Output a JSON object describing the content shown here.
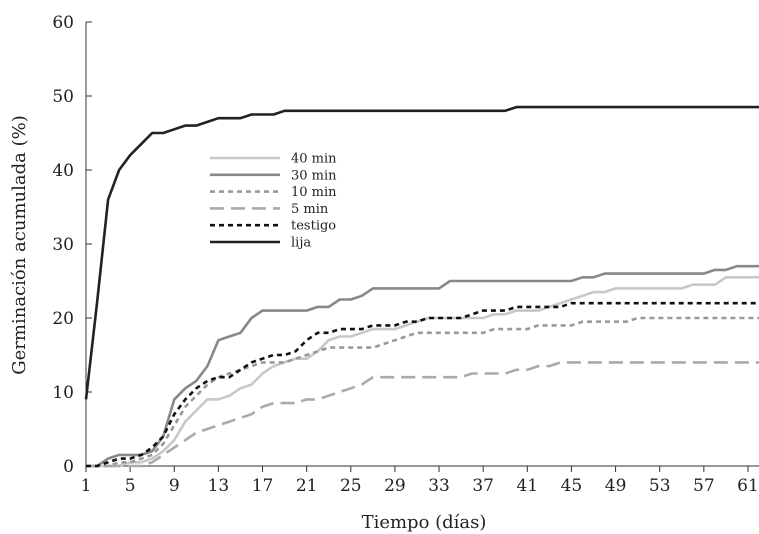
{
  "chart_data": {
    "type": "line",
    "title": "",
    "xlabel": "Tiempo (días)",
    "ylabel": "Germinación acumulada (%)",
    "xlim": [
      1,
      62
    ],
    "ylim": [
      0,
      60
    ],
    "xticks": [
      1,
      5,
      9,
      13,
      17,
      21,
      25,
      29,
      33,
      37,
      41,
      45,
      49,
      53,
      57,
      61
    ],
    "yticks": [
      0,
      10,
      20,
      30,
      40,
      50,
      60
    ],
    "grid": false,
    "legend_position": "left-middle",
    "series": [
      {
        "name": "40 min",
        "color": "#c8c8c8",
        "dash": "solid",
        "x": [
          1,
          2,
          3,
          4,
          5,
          6,
          7,
          8,
          9,
          10,
          11,
          12,
          13,
          14,
          15,
          16,
          17,
          18,
          19,
          20,
          21,
          22,
          23,
          24,
          25,
          26,
          27,
          28,
          29,
          30,
          31,
          32,
          33,
          34,
          35,
          36,
          37,
          38,
          39,
          40,
          41,
          42,
          43,
          44,
          45,
          46,
          47,
          48,
          49,
          50,
          51,
          52,
          53,
          54,
          55,
          56,
          57,
          58,
          59,
          60,
          61,
          62
        ],
        "y": [
          0,
          0,
          0,
          0,
          0.5,
          0.5,
          1,
          2,
          3.5,
          6,
          7.5,
          9,
          9,
          9.5,
          10.5,
          11,
          12.5,
          13.5,
          14,
          14.5,
          14.5,
          15.5,
          17,
          17.5,
          17.5,
          18,
          18.5,
          18.5,
          18.5,
          19,
          19.5,
          20,
          20,
          20,
          20,
          20,
          20,
          20.5,
          20.5,
          21,
          21,
          21,
          21.5,
          22,
          22.5,
          23,
          23.5,
          23.5,
          24,
          24,
          24,
          24,
          24,
          24,
          24,
          24.5,
          24.5,
          24.5,
          25.5,
          25.5,
          25.5,
          25.5
        ]
      },
      {
        "name": "30 min",
        "color": "#888888",
        "dash": "solid",
        "x": [
          1,
          2,
          3,
          4,
          5,
          6,
          7,
          8,
          9,
          10,
          11,
          12,
          13,
          14,
          15,
          16,
          17,
          18,
          19,
          20,
          21,
          22,
          23,
          24,
          25,
          26,
          27,
          28,
          29,
          30,
          31,
          32,
          33,
          34,
          35,
          36,
          37,
          38,
          39,
          40,
          41,
          42,
          43,
          44,
          45,
          46,
          47,
          48,
          49,
          50,
          51,
          52,
          53,
          54,
          55,
          56,
          57,
          58,
          59,
          60,
          61,
          62
        ],
        "y": [
          0,
          0,
          1,
          1.5,
          1.5,
          1.5,
          2,
          4,
          9,
          10.5,
          11.5,
          13.5,
          17,
          17.5,
          18,
          20,
          21,
          21,
          21,
          21,
          21,
          21.5,
          21.5,
          22.5,
          22.5,
          23,
          24,
          24,
          24,
          24,
          24,
          24,
          24,
          25,
          25,
          25,
          25,
          25,
          25,
          25,
          25,
          25,
          25,
          25,
          25,
          25.5,
          25.5,
          26,
          26,
          26,
          26,
          26,
          26,
          26,
          26,
          26,
          26,
          26.5,
          26.5,
          27,
          27,
          27
        ]
      },
      {
        "name": "10 min",
        "color": "#999999",
        "dash": "short",
        "x": [
          1,
          2,
          3,
          4,
          5,
          6,
          7,
          8,
          9,
          10,
          11,
          12,
          13,
          14,
          15,
          16,
          17,
          18,
          19,
          20,
          21,
          22,
          23,
          24,
          25,
          26,
          27,
          28,
          29,
          30,
          31,
          32,
          33,
          34,
          35,
          36,
          37,
          38,
          39,
          40,
          41,
          42,
          43,
          44,
          45,
          46,
          47,
          48,
          49,
          50,
          51,
          52,
          53,
          54,
          55,
          56,
          57,
          58,
          59,
          60,
          61,
          62
        ],
        "y": [
          0,
          0,
          0,
          0.5,
          0.5,
          1,
          1.5,
          3,
          5.5,
          8,
          9.5,
          11,
          12,
          12.5,
          13,
          13.5,
          14,
          14,
          14,
          14.5,
          15,
          15.5,
          16,
          16,
          16,
          16,
          16,
          16.5,
          17,
          17.5,
          18,
          18,
          18,
          18,
          18,
          18,
          18,
          18.5,
          18.5,
          18.5,
          18.5,
          19,
          19,
          19,
          19,
          19.5,
          19.5,
          19.5,
          19.5,
          19.5,
          20,
          20,
          20,
          20,
          20,
          20,
          20,
          20,
          20,
          20,
          20,
          20
        ]
      },
      {
        "name": "5 min",
        "color": "#aaaaaa",
        "dash": "long",
        "x": [
          1,
          2,
          3,
          4,
          5,
          6,
          7,
          8,
          9,
          10,
          11,
          12,
          13,
          14,
          15,
          16,
          17,
          18,
          19,
          20,
          21,
          22,
          23,
          24,
          25,
          26,
          27,
          28,
          29,
          30,
          31,
          32,
          33,
          34,
          35,
          36,
          37,
          38,
          39,
          40,
          41,
          42,
          43,
          44,
          45,
          46,
          47,
          48,
          49,
          50,
          51,
          52,
          53,
          54,
          55,
          56,
          57,
          58,
          59,
          60,
          61,
          62
        ],
        "y": [
          0,
          0,
          0,
          0,
          0,
          0,
          0.5,
          1.5,
          2.5,
          3.5,
          4.5,
          5,
          5.5,
          6,
          6.5,
          7,
          8,
          8.5,
          8.5,
          8.5,
          9,
          9,
          9.5,
          10,
          10.5,
          11,
          12,
          12,
          12,
          12,
          12,
          12,
          12,
          12,
          12,
          12.5,
          12.5,
          12.5,
          12.5,
          13,
          13,
          13.5,
          13.5,
          14,
          14,
          14,
          14,
          14,
          14,
          14,
          14,
          14,
          14,
          14,
          14,
          14,
          14,
          14,
          14,
          14,
          14,
          14
        ]
      },
      {
        "name": "testigo",
        "color": "#111111",
        "dash": "short",
        "x": [
          1,
          2,
          3,
          4,
          5,
          6,
          7,
          8,
          9,
          10,
          11,
          12,
          13,
          14,
          15,
          16,
          17,
          18,
          19,
          20,
          21,
          22,
          23,
          24,
          25,
          26,
          27,
          28,
          29,
          30,
          31,
          32,
          33,
          34,
          35,
          36,
          37,
          38,
          39,
          40,
          41,
          42,
          43,
          44,
          45,
          46,
          47,
          48,
          49,
          50,
          51,
          52,
          53,
          54,
          55,
          56,
          57,
          58,
          59,
          60,
          61,
          62
        ],
        "y": [
          0,
          0,
          0.5,
          1,
          1,
          1.5,
          2.5,
          4,
          7,
          9,
          10.5,
          11.5,
          12,
          12,
          13,
          14,
          14.5,
          15,
          15,
          15.5,
          17,
          18,
          18,
          18.5,
          18.5,
          18.5,
          19,
          19,
          19,
          19.5,
          19.5,
          20,
          20,
          20,
          20,
          20.5,
          21,
          21,
          21,
          21.5,
          21.5,
          21.5,
          21.5,
          21.5,
          22,
          22,
          22,
          22,
          22,
          22,
          22,
          22,
          22,
          22,
          22,
          22,
          22,
          22,
          22,
          22,
          22,
          22
        ]
      },
      {
        "name": "lija",
        "color": "#222222",
        "dash": "solid",
        "x": [
          1,
          2,
          3,
          4,
          5,
          6,
          7,
          8,
          9,
          10,
          11,
          12,
          13,
          14,
          15,
          16,
          17,
          18,
          19,
          20,
          21,
          22,
          23,
          24,
          25,
          26,
          27,
          28,
          29,
          30,
          31,
          32,
          33,
          34,
          35,
          36,
          37,
          38,
          39,
          40,
          41,
          42,
          43,
          44,
          45,
          46,
          47,
          48,
          49,
          50,
          51,
          52,
          53,
          54,
          55,
          56,
          57,
          58,
          59,
          60,
          61,
          62
        ],
        "y": [
          9,
          22,
          36,
          40,
          42,
          43.5,
          45,
          45,
          45.5,
          46,
          46,
          46.5,
          47,
          47,
          47,
          47.5,
          47.5,
          47.5,
          48,
          48,
          48,
          48,
          48,
          48,
          48,
          48,
          48,
          48,
          48,
          48,
          48,
          48,
          48,
          48,
          48,
          48,
          48,
          48,
          48,
          48.5,
          48.5,
          48.5,
          48.5,
          48.5,
          48.5,
          48.5,
          48.5,
          48.5,
          48.5,
          48.5,
          48.5,
          48.5,
          48.5,
          48.5,
          48.5,
          48.5,
          48.5,
          48.5,
          48.5,
          48.5,
          48.5,
          48.5
        ]
      }
    ]
  }
}
